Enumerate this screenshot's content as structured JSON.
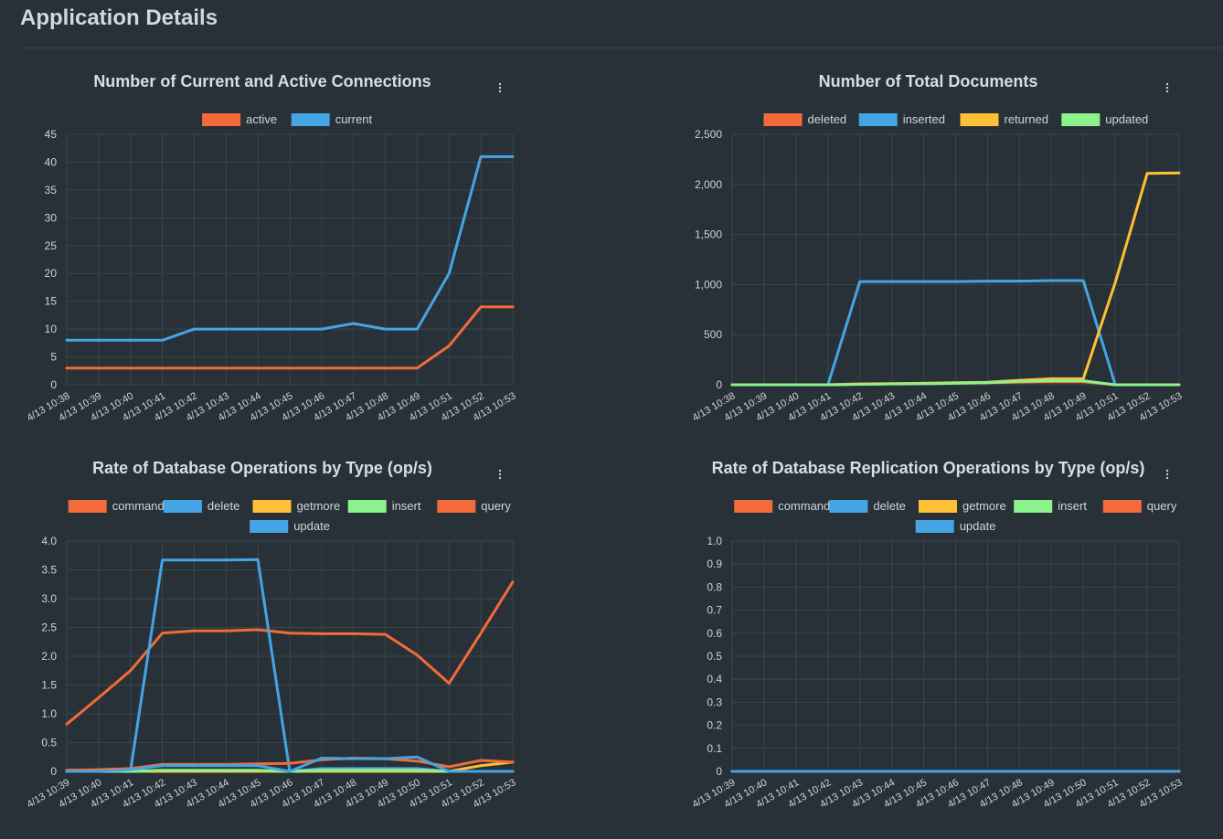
{
  "page": {
    "title": "Application Details"
  },
  "colors": {
    "background": "#283137",
    "grid": "#3a454d",
    "orange": "#f26b38",
    "blue": "#45a4e4",
    "yellow": "#ffc036",
    "green": "#8cf28c"
  },
  "menu_icon": "vertical-dots-icon",
  "chart_data": [
    {
      "id": "connections",
      "type": "line",
      "title": "Number of Current and Active Connections",
      "x": [
        "4/13 10:38",
        "4/13 10:39",
        "4/13 10:40",
        "4/13 10:41",
        "4/13 10:42",
        "4/13 10:43",
        "4/13 10:44",
        "4/13 10:45",
        "4/13 10:46",
        "4/13 10:47",
        "4/13 10:48",
        "4/13 10:49",
        "4/13 10:51",
        "4/13 10:52",
        "4/13 10:53"
      ],
      "ylim": [
        0,
        45
      ],
      "yticks": [
        0,
        5,
        10,
        15,
        20,
        25,
        30,
        35,
        40,
        45
      ],
      "ytick_labels": [
        "0",
        "5",
        "10",
        "15",
        "20",
        "25",
        "30",
        "35",
        "40",
        "45"
      ],
      "legend_rows": [
        [
          "active",
          "current"
        ]
      ],
      "series": [
        {
          "name": "active",
          "color": "#f26b38",
          "values": [
            3,
            3,
            3,
            3,
            3,
            3,
            3,
            3,
            3,
            3,
            3,
            3,
            7,
            14,
            14
          ]
        },
        {
          "name": "current",
          "color": "#45a4e4",
          "values": [
            8,
            8,
            8,
            8,
            10,
            10,
            10,
            10,
            10,
            11,
            10,
            10,
            20,
            41,
            41
          ]
        }
      ]
    },
    {
      "id": "documents",
      "type": "line",
      "title": "Number of Total Documents",
      "x": [
        "4/13 10:38",
        "4/13 10:39",
        "4/13 10:40",
        "4/13 10:41",
        "4/13 10:42",
        "4/13 10:43",
        "4/13 10:44",
        "4/13 10:45",
        "4/13 10:46",
        "4/13 10:47",
        "4/13 10:48",
        "4/13 10:49",
        "4/13 10:51",
        "4/13 10:52",
        "4/13 10:53"
      ],
      "ylim": [
        0,
        2500
      ],
      "yticks": [
        0,
        500,
        1000,
        1500,
        2000,
        2500
      ],
      "ytick_labels": [
        "0",
        "500",
        "1,000",
        "1,500",
        "2,000",
        "2,500"
      ],
      "legend_rows": [
        [
          "deleted",
          "inserted",
          "returned",
          "updated"
        ]
      ],
      "series": [
        {
          "name": "deleted",
          "color": "#f26b38",
          "values": [
            0,
            0,
            0,
            0,
            10,
            12,
            15,
            18,
            20,
            25,
            30,
            30,
            0,
            0,
            0
          ]
        },
        {
          "name": "inserted",
          "color": "#45a4e4",
          "values": [
            0,
            0,
            0,
            0,
            1030,
            1030,
            1030,
            1030,
            1035,
            1035,
            1040,
            1040,
            0,
            0,
            0
          ]
        },
        {
          "name": "returned",
          "color": "#ffc036",
          "values": [
            0,
            0,
            0,
            0,
            5,
            10,
            15,
            20,
            25,
            45,
            60,
            60,
            1020,
            2110,
            2115
          ]
        },
        {
          "name": "updated",
          "color": "#8cf28c",
          "values": [
            0,
            0,
            0,
            0,
            5,
            8,
            10,
            15,
            20,
            35,
            40,
            40,
            0,
            0,
            0
          ]
        }
      ]
    },
    {
      "id": "db-ops",
      "type": "line",
      "title": "Rate of Database Operations by Type (op/s)",
      "x": [
        "4/13 10:39",
        "4/13 10:40",
        "4/13 10:41",
        "4/13 10:42",
        "4/13 10:43",
        "4/13 10:44",
        "4/13 10:45",
        "4/13 10:46",
        "4/13 10:47",
        "4/13 10:48",
        "4/13 10:49",
        "4/13 10:50",
        "4/13 10:51",
        "4/13 10:52",
        "4/13 10:53"
      ],
      "ylim": [
        0,
        4
      ],
      "yticks": [
        0,
        0.5,
        1,
        1.5,
        2,
        2.5,
        3,
        3.5,
        4
      ],
      "ytick_labels": [
        "0",
        "0.5",
        "1.0",
        "1.5",
        "2.0",
        "2.5",
        "3.0",
        "3.5",
        "4.0"
      ],
      "legend_rows": [
        [
          "command",
          "delete",
          "getmore",
          "insert",
          "query"
        ],
        [
          "update"
        ]
      ],
      "series": [
        {
          "name": "command",
          "color": "#f26b38",
          "values": [
            0.82,
            1.28,
            1.75,
            2.4,
            2.44,
            2.44,
            2.46,
            2.4,
            2.39,
            2.39,
            2.38,
            2.02,
            1.53,
            2.4,
            3.29
          ]
        },
        {
          "name": "delete",
          "color": "#45a4e4",
          "values": [
            0,
            0,
            0,
            3.67,
            3.67,
            3.67,
            3.68,
            0,
            0.05,
            0.05,
            0.05,
            0.05,
            0,
            0,
            0
          ]
        },
        {
          "name": "getmore",
          "color": "#ffc036",
          "values": [
            0,
            0,
            0,
            0,
            0,
            0,
            0,
            0,
            0,
            0,
            0,
            0,
            0,
            0.1,
            0.16
          ]
        },
        {
          "name": "insert",
          "color": "#8cf28c",
          "values": [
            0,
            0,
            0,
            0.02,
            0.02,
            0.02,
            0.02,
            0,
            0.02,
            0.02,
            0.02,
            0.02,
            0,
            0,
            0
          ]
        },
        {
          "name": "query",
          "color": "#f26b38",
          "values": [
            0.02,
            0.03,
            0.05,
            0.12,
            0.12,
            0.12,
            0.13,
            0.14,
            0.2,
            0.23,
            0.22,
            0.18,
            0.08,
            0.19,
            0.16
          ]
        },
        {
          "name": "update",
          "color": "#45a4e4",
          "values": [
            0,
            0,
            0.03,
            0.1,
            0.1,
            0.1,
            0.1,
            0,
            0.23,
            0.22,
            0.22,
            0.25,
            0,
            0,
            0
          ]
        }
      ]
    },
    {
      "id": "repl-ops",
      "type": "line",
      "title": "Rate of Database Replication Operations by Type (op/s)",
      "x": [
        "4/13 10:39",
        "4/13 10:40",
        "4/13 10:41",
        "4/13 10:42",
        "4/13 10:43",
        "4/13 10:44",
        "4/13 10:45",
        "4/13 10:46",
        "4/13 10:47",
        "4/13 10:48",
        "4/13 10:49",
        "4/13 10:50",
        "4/13 10:51",
        "4/13 10:52",
        "4/13 10:53"
      ],
      "ylim": [
        0,
        1
      ],
      "yticks": [
        0,
        0.1,
        0.2,
        0.3,
        0.4,
        0.5,
        0.6,
        0.7,
        0.8,
        0.9,
        1
      ],
      "ytick_labels": [
        "0",
        "0.1",
        "0.2",
        "0.3",
        "0.4",
        "0.5",
        "0.6",
        "0.7",
        "0.8",
        "0.9",
        "1.0"
      ],
      "legend_rows": [
        [
          "command",
          "delete",
          "getmore",
          "insert",
          "query"
        ],
        [
          "update"
        ]
      ],
      "series": [
        {
          "name": "command",
          "color": "#f26b38",
          "values": [
            0,
            0,
            0,
            0,
            0,
            0,
            0,
            0,
            0,
            0,
            0,
            0,
            0,
            0,
            0
          ]
        },
        {
          "name": "delete",
          "color": "#45a4e4",
          "values": [
            0,
            0,
            0,
            0,
            0,
            0,
            0,
            0,
            0,
            0,
            0,
            0,
            0,
            0,
            0
          ]
        },
        {
          "name": "getmore",
          "color": "#ffc036",
          "values": [
            0,
            0,
            0,
            0,
            0,
            0,
            0,
            0,
            0,
            0,
            0,
            0,
            0,
            0,
            0
          ]
        },
        {
          "name": "insert",
          "color": "#8cf28c",
          "values": [
            0,
            0,
            0,
            0,
            0,
            0,
            0,
            0,
            0,
            0,
            0,
            0,
            0,
            0,
            0
          ]
        },
        {
          "name": "query",
          "color": "#f26b38",
          "values": [
            0,
            0,
            0,
            0,
            0,
            0,
            0,
            0,
            0,
            0,
            0,
            0,
            0,
            0,
            0
          ]
        },
        {
          "name": "update",
          "color": "#45a4e4",
          "values": [
            0,
            0,
            0,
            0,
            0,
            0,
            0,
            0,
            0,
            0,
            0,
            0,
            0,
            0,
            0
          ]
        }
      ]
    }
  ]
}
